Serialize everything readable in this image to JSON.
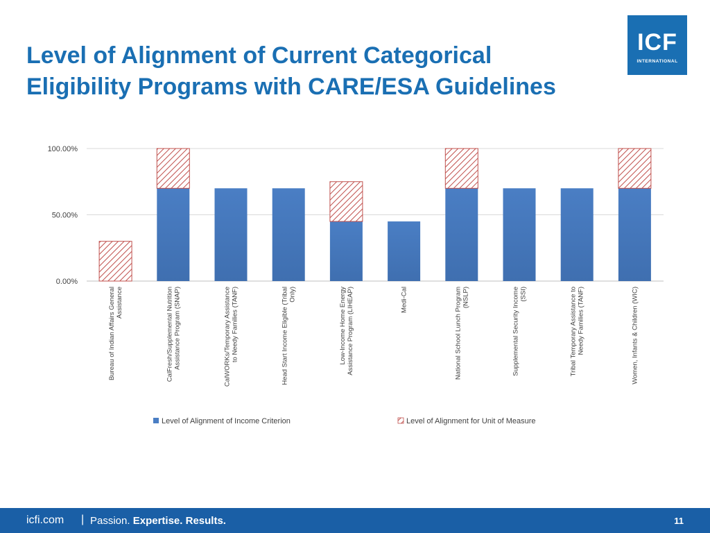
{
  "slide": {
    "title_line1": "Level of Alignment of Current Categorical",
    "title_line2": "Eligibility Programs with CARE/ESA Guidelines",
    "page_number": "11"
  },
  "logo": {
    "mark": "ICF",
    "sub": "INTERNATIONAL"
  },
  "footer": {
    "url": "icfi.com",
    "separator": "|",
    "tagline_1": "Passion.",
    "tagline_2": "Expertise.",
    "tagline_3": "Results."
  },
  "colors": {
    "title": "#1a6fb3",
    "footer_bg": "#1a5fa6",
    "income_series": "#4a7ec4",
    "hatch_series": "#c0504d",
    "gridline": "#d9d9d9"
  },
  "chart_data": {
    "type": "bar",
    "stacked": true,
    "title": "",
    "xlabel": "",
    "ylabel": "",
    "ylim": [
      0,
      100
    ],
    "y_ticks": [
      "0.00%",
      "50.00%",
      "100.00%"
    ],
    "y_tick_values": [
      0,
      50,
      100
    ],
    "grid": true,
    "legend_position": "bottom",
    "categories": [
      [
        "Bureau of Indian Affairs General",
        "Assistance"
      ],
      [
        "CalFresh/Supplemental Nutrition",
        "Assistance Program (SNAP)"
      ],
      [
        "CalWORKs/Temporary Assistance",
        "to Needy Families (TANF)"
      ],
      [
        "Head Start Income Eligible (Tribal",
        "Only)"
      ],
      [
        "Low-Income Home Energy",
        "Assistance Program (LIHEAP)"
      ],
      [
        "Medi-Cal"
      ],
      [
        "National School Lunch Program",
        "(NSLP)"
      ],
      [
        "Supplemental Security Income",
        "(SSI)"
      ],
      [
        "Tribal Temporary Assistance to",
        "Needy Families (TANF)"
      ],
      [
        "Women, Infants & Children (WIC)"
      ]
    ],
    "series": [
      {
        "name": "Level of Alignment of Income Criterion",
        "pattern": "solid",
        "values": [
          0,
          70,
          70,
          70,
          45,
          45,
          70,
          70,
          70,
          70
        ]
      },
      {
        "name": "Level of Alignment for Unit of Measure",
        "pattern": "hatch",
        "values": [
          30,
          30,
          0,
          0,
          30,
          0,
          30,
          0,
          0,
          30
        ]
      }
    ]
  }
}
